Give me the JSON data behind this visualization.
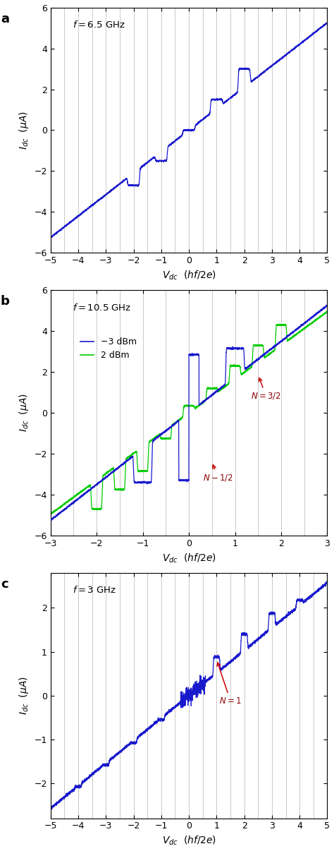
{
  "panel_a": {
    "label": "a",
    "freq": "$f = 6.5$ GHz",
    "xlim": [
      -5,
      5
    ],
    "ylim": [
      -6,
      6
    ],
    "xticks": [
      -5,
      -4,
      -3,
      -2,
      -1,
      0,
      1,
      2,
      3,
      4,
      5
    ],
    "yticks": [
      -6,
      -4,
      -2,
      0,
      2,
      4,
      6
    ],
    "vlines": [
      -4.5,
      -4.0,
      -3.5,
      -3.0,
      -2.5,
      -2.0,
      -1.5,
      -1.0,
      -0.5,
      0.0,
      0.5,
      1.0,
      1.5,
      2.0,
      2.5,
      3.0,
      3.5,
      4.0,
      4.5
    ],
    "line_color": "#1a1acd"
  },
  "panel_b": {
    "label": "b",
    "freq": "$f = 10.5$ GHz",
    "xlim": [
      -3,
      3
    ],
    "ylim": [
      -6,
      6
    ],
    "xticks": [
      -3,
      -2,
      -1,
      0,
      1,
      2,
      3
    ],
    "yticks": [
      -6,
      -4,
      -2,
      0,
      2,
      4,
      6
    ],
    "vlines": [
      -2.5,
      -2.0,
      -1.5,
      -1.0,
      -0.5,
      0.0,
      0.5,
      1.0,
      1.5,
      2.0,
      2.5
    ],
    "line_color_blue": "#1a1acd",
    "line_color_green": "#00cc00",
    "legend_blue": "−3 dBm",
    "legend_green": "2 dBm"
  },
  "panel_c": {
    "label": "c",
    "freq": "$f = 3$ GHz",
    "xlim": [
      -5,
      5
    ],
    "ylim": [
      -2.8,
      2.8
    ],
    "xticks": [
      -5,
      -4,
      -3,
      -2,
      -1,
      0,
      1,
      2,
      3,
      4,
      5
    ],
    "yticks": [
      -2,
      -1,
      0,
      1,
      2
    ],
    "vlines": [
      -4.5,
      -4.0,
      -3.5,
      -3.0,
      -2.5,
      -2.0,
      -1.5,
      -1.0,
      -0.5,
      0.0,
      0.5,
      1.0,
      1.5,
      2.0,
      2.5,
      3.0,
      3.5,
      4.0,
      4.5
    ],
    "line_color": "#1a1acd"
  },
  "xlabel": "$V_{dc}$  $(hf/2e)$",
  "ylabel_a": "$I_{dc}$  $({\\mu}A)$",
  "ylabel_b": "$I_{dc}$  $({\\mu}A)$",
  "ylabel_c": "$I_{dc}$  $({\\mu}A)$"
}
